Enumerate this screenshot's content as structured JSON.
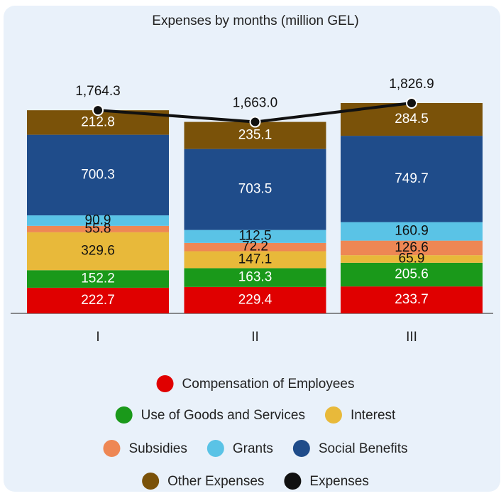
{
  "chart_data": {
    "type": "bar",
    "stacked": true,
    "title": "Expenses by months (million GEL)",
    "categories": [
      "I",
      "II",
      "III"
    ],
    "series": [
      {
        "name": "Compensation of Employees",
        "color": "#e00000",
        "values": [
          222.7,
          229.4,
          233.7
        ]
      },
      {
        "name": "Use of Goods and Services",
        "color": "#1a991a",
        "values": [
          152.2,
          163.3,
          205.6
        ]
      },
      {
        "name": "Interest",
        "color": "#e8b93a",
        "values": [
          329.6,
          147.1,
          65.9
        ]
      },
      {
        "name": "Subsidies",
        "color": "#ee8754",
        "values": [
          55.8,
          72.2,
          126.6
        ]
      },
      {
        "name": "Grants",
        "color": "#5ac3e6",
        "values": [
          90.9,
          112.5,
          160.9
        ]
      },
      {
        "name": "Social Benefits",
        "color": "#1f4c8a",
        "values": [
          700.3,
          703.5,
          749.7
        ]
      },
      {
        "name": "Other Expenses",
        "color": "#7a5209",
        "values": [
          212.8,
          235.1,
          284.5
        ]
      },
      {
        "name": "Expenses",
        "color": "#111111",
        "type": "line",
        "values": [
          1764.3,
          1663.0,
          1826.9
        ],
        "value_labels": [
          "1,764.3",
          "1,663.0",
          "1,826.9"
        ]
      }
    ]
  }
}
